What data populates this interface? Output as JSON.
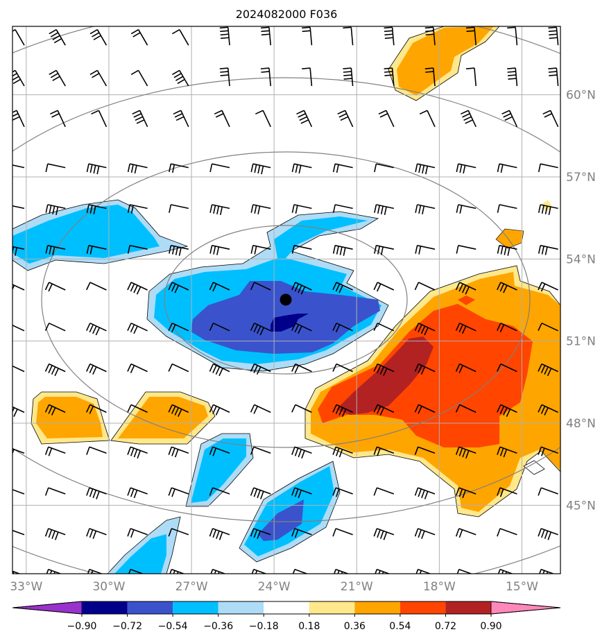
{
  "chart_data": {
    "type": "contour-map",
    "title": "2024082000 F036",
    "x_ticks": [
      "33°W",
      "30°W",
      "27°W",
      "24°W",
      "21°W",
      "18°W",
      "15°W"
    ],
    "x_tick_values": [
      -33,
      -30,
      -27,
      -24,
      -21,
      -18,
      -15
    ],
    "y_ticks": [
      "60°N",
      "57°N",
      "54°N",
      "51°N",
      "48°N",
      "45°N"
    ],
    "y_tick_values": [
      60,
      57,
      54,
      51,
      48,
      45
    ],
    "xlim": [
      -33.5,
      -13.6
    ],
    "ylim": [
      42.5,
      62.5
    ],
    "grid": true,
    "marker": {
      "lon": -23.6,
      "lat": 52.6
    },
    "range_rings_km": [
      250,
      500,
      750,
      1000
    ],
    "colorbar": {
      "ticks": [
        "−0.90",
        "−0.72",
        "−0.54",
        "−0.36",
        "−0.18",
        "0.18",
        "0.36",
        "0.54",
        "0.72",
        "0.90"
      ],
      "colors": [
        "#9932CC",
        "#00008B",
        "#3A53CC",
        "#00BFFF",
        "#AEDCF7",
        "#FFFFFF",
        "#FFE88C",
        "#FFA500",
        "#FF4500",
        "#B22222",
        "#FF88BB"
      ],
      "extend": "both"
    },
    "colors": {
      "grid": "#b0b0b0",
      "ring": "#808080",
      "frame": "#000000"
    },
    "wind_barbs": "regular 1.5° grid of wind barbs, mostly westerly-northwesterly flow"
  }
}
